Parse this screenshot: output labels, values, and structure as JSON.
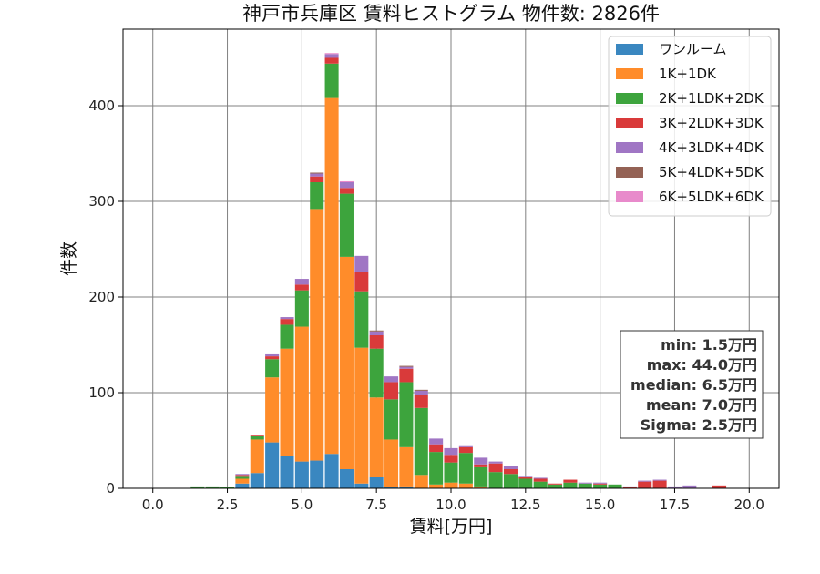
{
  "chart_data": {
    "type": "bar",
    "stacked": true,
    "title": "神戸市兵庫区 賃料ヒストグラム  物件数: 2826件",
    "xlabel": "賃料[万円]",
    "ylabel": "件数",
    "xlim": [
      -1.0,
      21.0
    ],
    "ylim": [
      0,
      480
    ],
    "xticks": [
      0.0,
      2.5,
      5.0,
      7.5,
      10.0,
      12.5,
      15.0,
      17.5,
      20.0
    ],
    "xtick_labels": [
      "0.0",
      "2.5",
      "5.0",
      "7.5",
      "10.0",
      "12.5",
      "15.0",
      "17.5",
      "20.0"
    ],
    "yticks": [
      0,
      100,
      200,
      300,
      400
    ],
    "ytick_labels": [
      "0",
      "100",
      "200",
      "300",
      "400"
    ],
    "grid": true,
    "bin_width": 0.5,
    "bin_centers": [
      1.5,
      2.0,
      2.5,
      3.0,
      3.5,
      4.0,
      4.5,
      5.0,
      5.5,
      6.0,
      6.5,
      7.0,
      7.5,
      8.0,
      8.5,
      9.0,
      9.5,
      10.0,
      10.5,
      11.0,
      11.5,
      12.0,
      12.5,
      13.0,
      13.5,
      14.0,
      14.5,
      15.0,
      15.5,
      16.0,
      16.5,
      17.0,
      17.5,
      18.0,
      18.5,
      19.0
    ],
    "series": [
      {
        "name": "ワンルーム",
        "color": "#3a87c0",
        "values": [
          0,
          0,
          0,
          5,
          16,
          48,
          34,
          28,
          29,
          36,
          20,
          5,
          12,
          1,
          2,
          0,
          0,
          0,
          0,
          0,
          0,
          0,
          0,
          0,
          0,
          0,
          0,
          0,
          0,
          0,
          0,
          0,
          0,
          0,
          0,
          0
        ]
      },
      {
        "name": "1K+1DK",
        "color": "#ff8c2a",
        "values": [
          0,
          0,
          0,
          5,
          35,
          68,
          112,
          141,
          263,
          372,
          222,
          142,
          83,
          50,
          41,
          14,
          4,
          6,
          5,
          2,
          0,
          0,
          0,
          0,
          0,
          0,
          0,
          0,
          0,
          0,
          0,
          0,
          0,
          0,
          0,
          0
        ]
      },
      {
        "name": "2K+1LDK+2DK",
        "color": "#3da43d",
        "values": [
          2,
          2,
          1,
          3,
          4,
          19,
          25,
          38,
          28,
          36,
          66,
          59,
          51,
          42,
          68,
          70,
          34,
          21,
          32,
          20,
          17,
          15,
          10,
          7,
          4,
          6,
          5,
          4,
          4,
          0,
          0,
          0,
          0,
          0,
          0,
          0
        ]
      },
      {
        "name": "3K+2LDK+3DK",
        "color": "#d93a3a",
        "values": [
          0,
          0,
          0,
          1,
          1,
          3,
          6,
          6,
          6,
          6,
          6,
          20,
          14,
          18,
          14,
          14,
          8,
          8,
          6,
          3,
          9,
          5,
          2,
          3,
          1,
          3,
          0,
          1,
          0,
          1,
          7,
          8,
          0,
          0,
          0,
          3
        ]
      },
      {
        "name": "4K+3LDK+4DK",
        "color": "#a076c4",
        "values": [
          0,
          0,
          0,
          1,
          0,
          3,
          2,
          6,
          3,
          4,
          6,
          17,
          4,
          6,
          2,
          4,
          6,
          7,
          2,
          7,
          2,
          3,
          1,
          1,
          0,
          0,
          1,
          1,
          0,
          1,
          1,
          1,
          2,
          3,
          0,
          0
        ]
      },
      {
        "name": "5K+4LDK+5DK",
        "color": "#946255",
        "values": [
          0,
          0,
          0,
          0,
          0,
          0,
          0,
          0,
          1,
          0,
          0,
          0,
          1,
          0,
          1,
          1,
          0,
          0,
          0,
          0,
          0,
          0,
          0,
          0,
          0,
          0,
          0,
          0,
          0,
          0,
          0,
          0,
          0,
          0,
          0,
          0
        ]
      },
      {
        "name": "6K+5LDK+6DK",
        "color": "#e88acb",
        "values": [
          0,
          0,
          0,
          0,
          0,
          0,
          0,
          0,
          0,
          1,
          1,
          0,
          0,
          0,
          0,
          0,
          0,
          0,
          0,
          0,
          0,
          0,
          0,
          0,
          0,
          0,
          0,
          0,
          0,
          0,
          0,
          0,
          0,
          0,
          0,
          0
        ]
      }
    ],
    "legend_position": "top-right",
    "stats": [
      "min: 1.5万円",
      "max: 44.0万円",
      "median: 6.5万円",
      "mean: 7.0万円",
      "Sigma: 2.5万円"
    ],
    "stats_position": "right"
  }
}
